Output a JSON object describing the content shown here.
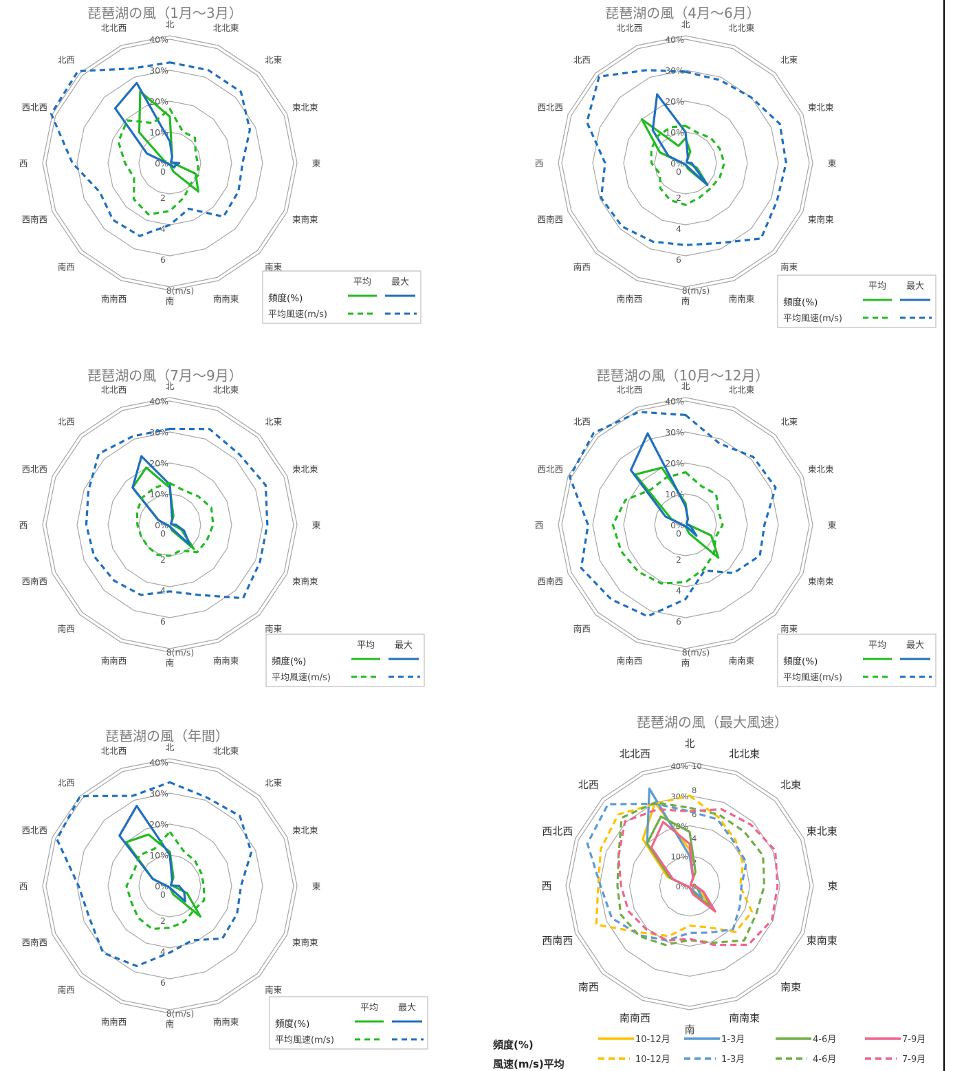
{
  "directions": [
    "北",
    "北北東",
    "北東",
    "東北東",
    "東",
    "東南東",
    "南東",
    "南南東",
    "南",
    "南南西",
    "南西",
    "西南西",
    "西",
    "西北西",
    "北西",
    "北北西"
  ],
  "freq_ticks": [
    "0%",
    "10%",
    "20%",
    "30%",
    "40%"
  ],
  "speed_ticks": [
    "0",
    "2",
    "4",
    "6",
    "8(m/s)"
  ],
  "max_speed_ticks": [
    "0",
    "2",
    "4",
    "6",
    "8",
    "10"
  ],
  "legend": {
    "col_avg": "平均",
    "col_max": "最大",
    "row_freq": "頻度(%)",
    "row_speed": "平均風速(m/s)"
  },
  "legend6": {
    "row_freq": "頻度(%)",
    "row_speed": "風速(m/s)平均",
    "s1": "10-12月",
    "s2": "1-3月",
    "s3": "4-6月",
    "s4": "7-9月"
  },
  "colors": {
    "green": "#22bb22",
    "blue": "#1f6fbf",
    "orange": "#ffc000",
    "lightblue": "#5b9bd5",
    "olive": "#70ad47",
    "pink": "#f0648c",
    "grid": "#a6a6a6"
  },
  "chart_data": [
    {
      "type": "radar",
      "title": "琵琶湖の風（1月～3月）",
      "axes": [
        "北",
        "北北東",
        "北東",
        "東北東",
        "東",
        "東南東",
        "南東",
        "南南東",
        "南",
        "南南西",
        "南西",
        "西南西",
        "西",
        "西北西",
        "北西",
        "北北西"
      ],
      "freq_max": 40,
      "speed_max": 8,
      "series": [
        {
          "name": "頻度(%) 平均",
          "scale": "freq",
          "values": [
            15,
            2,
            0.5,
            0.5,
            1,
            9,
            13,
            3,
            0.5,
            0.5,
            0.5,
            0.5,
            1,
            2,
            14,
            25
          ]
        },
        {
          "name": "頻度(%) 最大",
          "scale": "freq",
          "values": [
            7,
            2,
            0.5,
            0.5,
            3,
            2,
            2,
            0.5,
            0.5,
            0.5,
            0.5,
            0.5,
            1,
            8,
            25,
            28
          ]
        },
        {
          "name": "平均風速(m/s) 平均",
          "scale": "speed",
          "values": [
            3.5,
            2.2,
            2.3,
            1.8,
            1.8,
            2.0,
            1.9,
            2.4,
            3.1,
            3.6,
            3.3,
            2.5,
            2.9,
            3.6,
            3.9,
            2.8
          ]
        },
        {
          "name": "平均風速(m/s) 最大",
          "scale": "speed",
          "values": [
            6.5,
            6.5,
            6.5,
            5.6,
            4.7,
            4.8,
            4.9,
            3.2,
            4.0,
            5.1,
            5.2,
            4.9,
            6.3,
            8.3,
            8.4,
            6.6
          ]
        }
      ]
    },
    {
      "type": "radar",
      "title": "琵琶湖の風（4月～6月）",
      "axes": [
        "北",
        "北北東",
        "北東",
        "東北東",
        "東",
        "東南東",
        "南東",
        "南南東",
        "南",
        "南南西",
        "南西",
        "西南西",
        "西",
        "西北西",
        "北西",
        "北北西"
      ],
      "freq_max": 40,
      "speed_max": 8,
      "series": [
        {
          "name": "頻度(%) 平均",
          "scale": "freq",
          "values": [
            8,
            4,
            0.5,
            0.5,
            1,
            4,
            10,
            2,
            0.5,
            0.5,
            0.5,
            0.5,
            1,
            9,
            20,
            6
          ]
        },
        {
          "name": "頻度(%) 最大",
          "scale": "freq",
          "values": [
            10,
            2,
            0.5,
            0.5,
            2,
            3,
            10,
            1,
            0.5,
            0.5,
            0.5,
            0.5,
            1,
            6,
            15,
            24
          ]
        },
        {
          "name": "平均風速(m/s) 平均",
          "scale": "speed",
          "values": [
            2.4,
            2.1,
            2.3,
            2.4,
            2.5,
            2.4,
            2.3,
            2.4,
            2.7,
            2.6,
            2.3,
            1.8,
            2.2,
            2.4,
            2.5,
            2.5
          ]
        },
        {
          "name": "平均風速(m/s) 最大",
          "scale": "speed",
          "values": [
            5.9,
            5.8,
            6.0,
            6.6,
            6.5,
            6.4,
            6.9,
            5.6,
            5.3,
            5.5,
            5.8,
            5.9,
            5.2,
            6.9,
            7.9,
            6.5
          ]
        }
      ]
    },
    {
      "type": "radar",
      "title": "琵琶湖の風（7月～9月）",
      "axes": [
        "北",
        "北北東",
        "北東",
        "東北東",
        "東",
        "東南東",
        "南東",
        "南南東",
        "南",
        "南南西",
        "南西",
        "西南西",
        "西",
        "西北西",
        "北西",
        "北北西"
      ],
      "freq_max": 40,
      "speed_max": 8,
      "series": [
        {
          "name": "頻度(%) 平均",
          "scale": "freq",
          "values": [
            12,
            3,
            0.5,
            0.5,
            1,
            4,
            11,
            2,
            0.5,
            0.5,
            0.5,
            0.5,
            1,
            4,
            17,
            20
          ]
        },
        {
          "name": "頻度(%) 最大",
          "scale": "freq",
          "values": [
            13,
            2,
            0.5,
            0.5,
            2,
            5,
            9,
            1,
            0.5,
            0.5,
            0.5,
            0.5,
            1,
            4,
            17,
            24
          ]
        },
        {
          "name": "平均風速(m/s) 平均",
          "scale": "speed",
          "values": [
            2.7,
            2.4,
            2.6,
            2.9,
            2.8,
            2.6,
            2.5,
            1.8,
            2.0,
            2.1,
            2.0,
            2.0,
            2.1,
            2.3,
            2.5,
            2.6
          ]
        },
        {
          "name": "平均風速(m/s) 最大",
          "scale": "speed",
          "values": [
            6.2,
            6.7,
            6.4,
            6.7,
            6.3,
            6.3,
            6.7,
            4.9,
            4.3,
            4.9,
            5.1,
            5.3,
            5.4,
            5.7,
            6.5,
            6.2
          ]
        }
      ]
    },
    {
      "type": "radar",
      "title": "琵琶湖の風（10月～12月）",
      "axes": [
        "北",
        "北北東",
        "北東",
        "東北東",
        "東",
        "東南東",
        "南東",
        "南南東",
        "南",
        "南南西",
        "南西",
        "西南西",
        "西",
        "西北西",
        "北西",
        "北北西"
      ],
      "freq_max": 40,
      "speed_max": 8,
      "series": [
        {
          "name": "頻度(%) 平均",
          "scale": "freq",
          "values": [
            7,
            2,
            0.5,
            0.5,
            1,
            9,
            15,
            3,
            0.5,
            0.5,
            0.5,
            0.5,
            1,
            5,
            23,
            20
          ]
        },
        {
          "name": "頻度(%) 最大",
          "scale": "freq",
          "values": [
            6,
            2,
            0.5,
            0.5,
            1,
            2,
            5,
            0.5,
            0.5,
            0.5,
            0.5,
            0.5,
            1,
            7,
            25,
            32
          ]
        },
        {
          "name": "平均風速(m/s) 平均",
          "scale": "speed",
          "values": [
            3.4,
            2.7,
            2.8,
            2.3,
            2.4,
            2.1,
            2.6,
            3.1,
            3.7,
            4.1,
            4.3,
            4.5,
            4.7,
            4.2,
            3.2,
            3.3
          ]
        },
        {
          "name": "平均風速(m/s) 最大",
          "scale": "speed",
          "values": [
            7.1,
            5.7,
            6.2,
            6.3,
            5.1,
            5.2,
            4.4,
            3.2,
            4.8,
            6.4,
            6.8,
            7.3,
            6.3,
            8.1,
            8.4,
            7.9
          ]
        }
      ]
    },
    {
      "type": "radar",
      "title": "琵琶湖の風（年間）",
      "axes": [
        "北",
        "北北東",
        "北東",
        "東北東",
        "東",
        "東南東",
        "南東",
        "南南東",
        "南",
        "南南西",
        "南西",
        "西南西",
        "西",
        "西北西",
        "北西",
        "北北西"
      ],
      "freq_max": 40,
      "speed_max": 8,
      "series": [
        {
          "name": "頻度(%) 平均",
          "scale": "freq",
          "values": [
            11,
            3,
            0.5,
            0.5,
            1,
            6,
            14,
            3,
            0.5,
            0.5,
            0.5,
            0.5,
            1,
            6,
            20,
            18
          ]
        },
        {
          "name": "頻度(%) 最大",
          "scale": "freq",
          "values": [
            10,
            2,
            0.5,
            0.5,
            3,
            5,
            7,
            1,
            0.5,
            0.5,
            0.5,
            0.5,
            1,
            6,
            23,
            28
          ]
        },
        {
          "name": "平均風速(m/s) 平均",
          "scale": "speed",
          "values": [
            3.5,
            2.4,
            2.3,
            2.2,
            2.2,
            2.4,
            2.2,
            2.5,
            2.7,
            3.0,
            2.9,
            2.7,
            2.8,
            2.5,
            2.8,
            2.6
          ]
        },
        {
          "name": "平均風速(m/s) 最大",
          "scale": "speed",
          "values": [
            6.7,
            6.2,
            6.4,
            5.7,
            4.6,
            4.7,
            4.8,
            3.8,
            4.3,
            5.6,
            6.1,
            5.6,
            5.9,
            7.9,
            8.2,
            6.3
          ]
        }
      ]
    },
    {
      "type": "radar",
      "title": "琵琶湖の風（最大風速）",
      "axes": [
        "北",
        "北北東",
        "北東",
        "東北東",
        "東",
        "東南東",
        "南東",
        "南南東",
        "南",
        "南南西",
        "南西",
        "西南西",
        "西",
        "西北西",
        "北西",
        "北北西"
      ],
      "freq_max": 40,
      "speed_max": 10,
      "series": [
        {
          "name": "頻度(%) 10-12月",
          "scale": "freq",
          "values": [
            12,
            3,
            0.5,
            0.5,
            2,
            4,
            9,
            2,
            0.5,
            0.5,
            0.5,
            0.5,
            1,
            8,
            22,
            30
          ]
        },
        {
          "name": "頻度(%) 1-3月",
          "scale": "freq",
          "values": [
            10,
            3,
            0.5,
            0.5,
            2,
            3,
            6,
            1,
            0.5,
            0.5,
            0.5,
            0.5,
            1,
            7,
            20,
            35
          ]
        },
        {
          "name": "頻度(%) 4-6月",
          "scale": "freq",
          "values": [
            18,
            5,
            0.5,
            0.5,
            1,
            5,
            10,
            2,
            0.5,
            0.5,
            0.5,
            0.5,
            1,
            7,
            20,
            25
          ]
        },
        {
          "name": "頻度(%) 7-9月",
          "scale": "freq",
          "values": [
            14,
            3,
            0.5,
            0.5,
            2,
            5,
            12,
            3,
            0.5,
            0.5,
            0.5,
            0.5,
            1,
            6,
            18,
            23
          ]
        },
        {
          "name": "風速(m/s)平均 10-12月",
          "scale": "speed",
          "values": [
            7.5,
            6.2,
            5.4,
            4.8,
            4.2,
            5.6,
            5.4,
            3.7,
            3.3,
            4.5,
            5.5,
            8.4,
            7.6,
            8.0,
            8.4,
            7.4
          ]
        },
        {
          "name": "風速(m/s)平均 1-3月",
          "scale": "speed",
          "values": [
            6.2,
            6.0,
            5.2,
            5.1,
            4.3,
            4.5,
            5.1,
            4.2,
            3.9,
            4.9,
            5.8,
            7.0,
            7.4,
            9.2,
            9.6,
            7.4
          ]
        },
        {
          "name": "風速(m/s)平均 4-6月",
          "scale": "speed",
          "values": [
            6.5,
            6.4,
            6.4,
            6.6,
            6.2,
            6.0,
            6.4,
            5.1,
            4.5,
            5.3,
            5.9,
            6.2,
            6.0,
            6.4,
            8.0,
            7.5
          ]
        },
        {
          "name": "風速(m/s)平均 7-9月",
          "scale": "speed",
          "values": [
            6.2,
            6.9,
            7.2,
            7.7,
            7.3,
            7.4,
            6.9,
            5.3,
            4.4,
            4.9,
            5.1,
            5.5,
            5.7,
            6.4,
            7.6,
            6.9
          ]
        }
      ]
    }
  ]
}
